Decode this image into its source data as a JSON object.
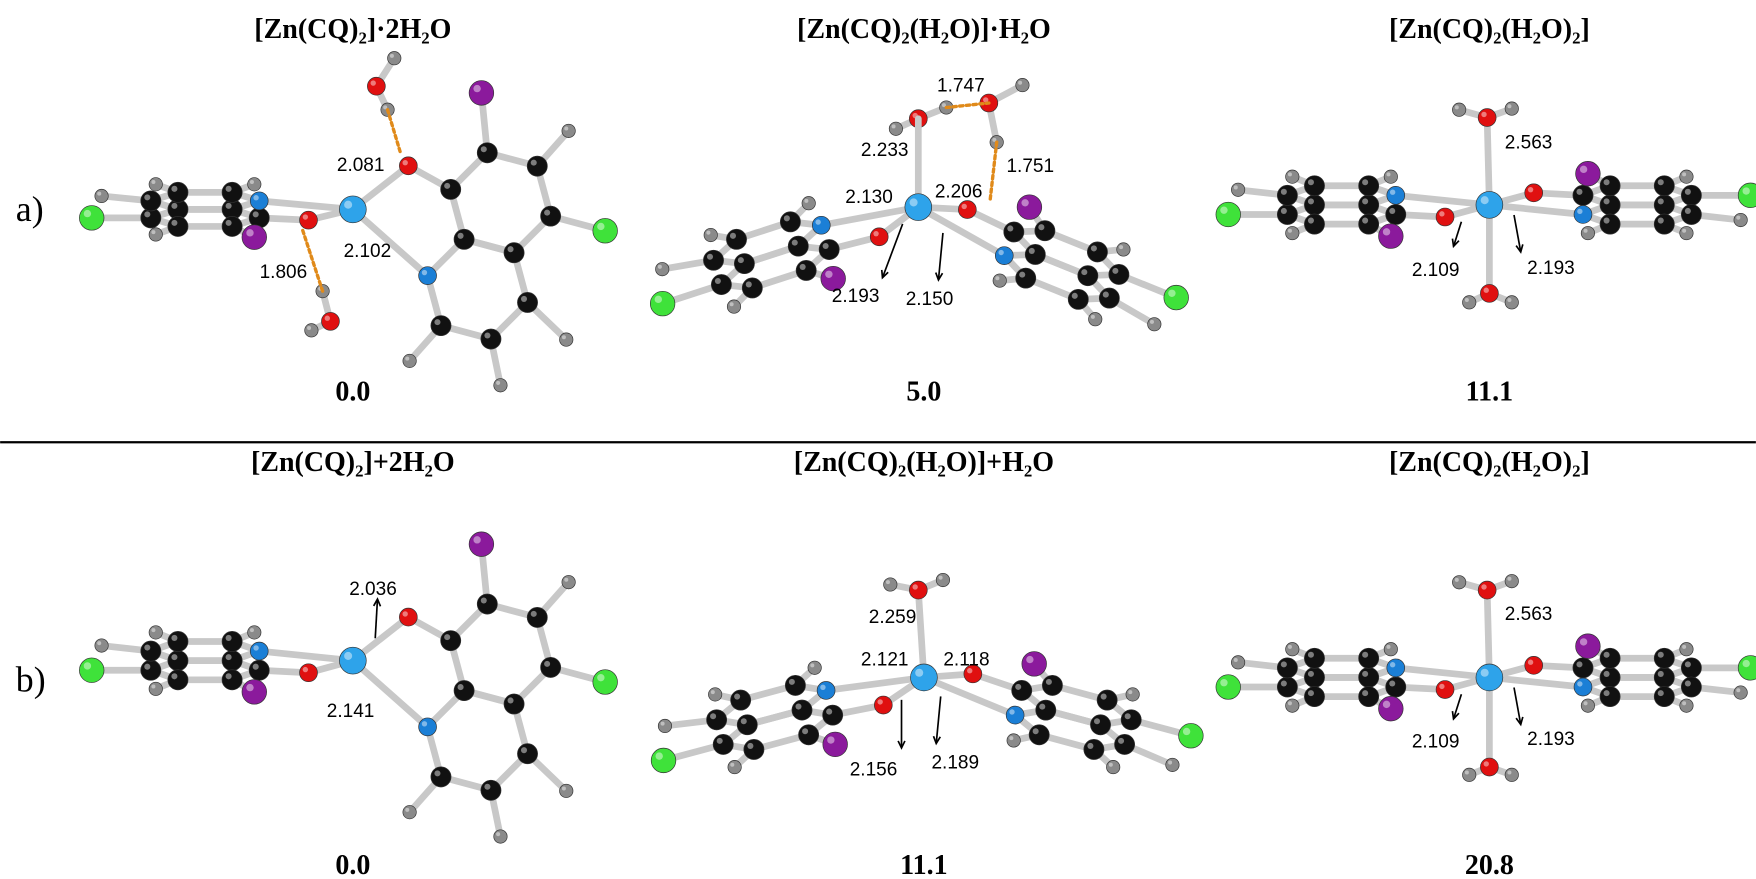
{
  "panels": [
    {
      "label": "a)",
      "structures": [
        {
          "title": "[Zn(CQ)₂]·2H₂O",
          "distances": [
            "2.081",
            "2.102",
            "1.806"
          ],
          "energy": "0.0"
        },
        {
          "title": "[Zn(CQ)₂(H₂O)]·H₂O",
          "distances": [
            "1.747",
            "2.233",
            "1.751",
            "2.130",
            "2.206",
            "2.193",
            "2.150"
          ],
          "energy": "5.0"
        },
        {
          "title": "[Zn(CQ)₂(H₂O)₂]",
          "distances": [
            "2.563",
            "2.109",
            "2.193"
          ],
          "energy": "11.1"
        }
      ]
    },
    {
      "label": "b)",
      "structures": [
        {
          "title": "[Zn(CQ)₂]+2H₂O",
          "distances": [
            "2.036",
            "2.141"
          ],
          "energy": "0.0"
        },
        {
          "title": "[Zn(CQ)₂(H₂O)]+H₂O",
          "distances": [
            "2.259",
            "2.121",
            "2.118",
            "2.156",
            "2.189"
          ],
          "energy": "11.1"
        },
        {
          "title": "[Zn(CQ)₂(H₂O)₂]",
          "distances": [
            "2.563",
            "2.109",
            "2.193"
          ],
          "energy": "20.8"
        }
      ]
    }
  ]
}
